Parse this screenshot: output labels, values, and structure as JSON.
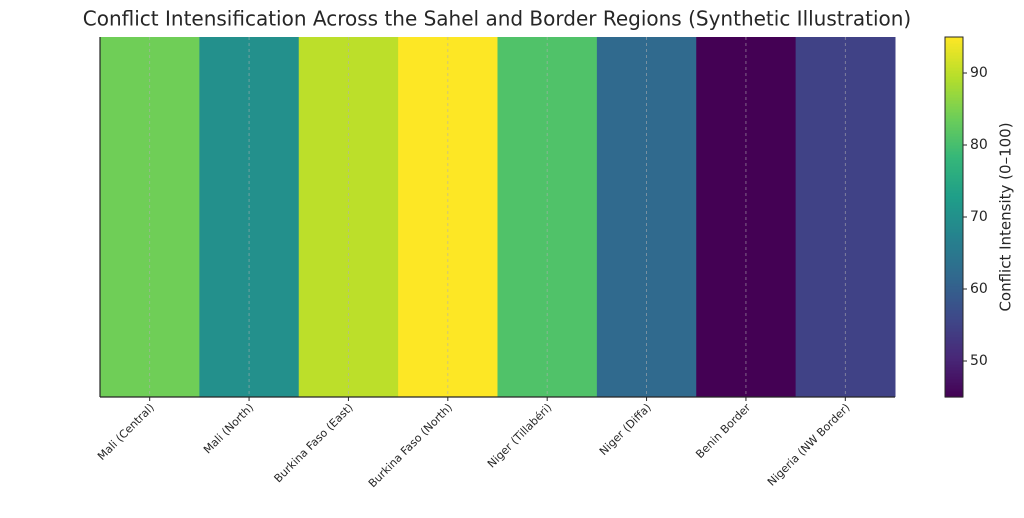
{
  "chart_data": {
    "type": "heatmap",
    "title": "Conflict Intensification Across the Sahel and Border Regions (Synthetic Illustration)",
    "categories": [
      "Mali (Central)",
      "Mali (North)",
      "Burkina Faso (East)",
      "Burkina Faso (North)",
      "Niger (Tillabéri)",
      "Niger (Diffa)",
      "Benin Border",
      "Nigeria (NW Border)"
    ],
    "values": [
      84,
      70,
      90,
      95,
      81,
      62,
      45,
      55
    ],
    "colormap": "viridis",
    "clim": [
      45,
      95
    ],
    "cticks": [
      50,
      60,
      70,
      80,
      90
    ],
    "colorbar_label": "Conflict Intensity (0–100)",
    "grid": true
  }
}
